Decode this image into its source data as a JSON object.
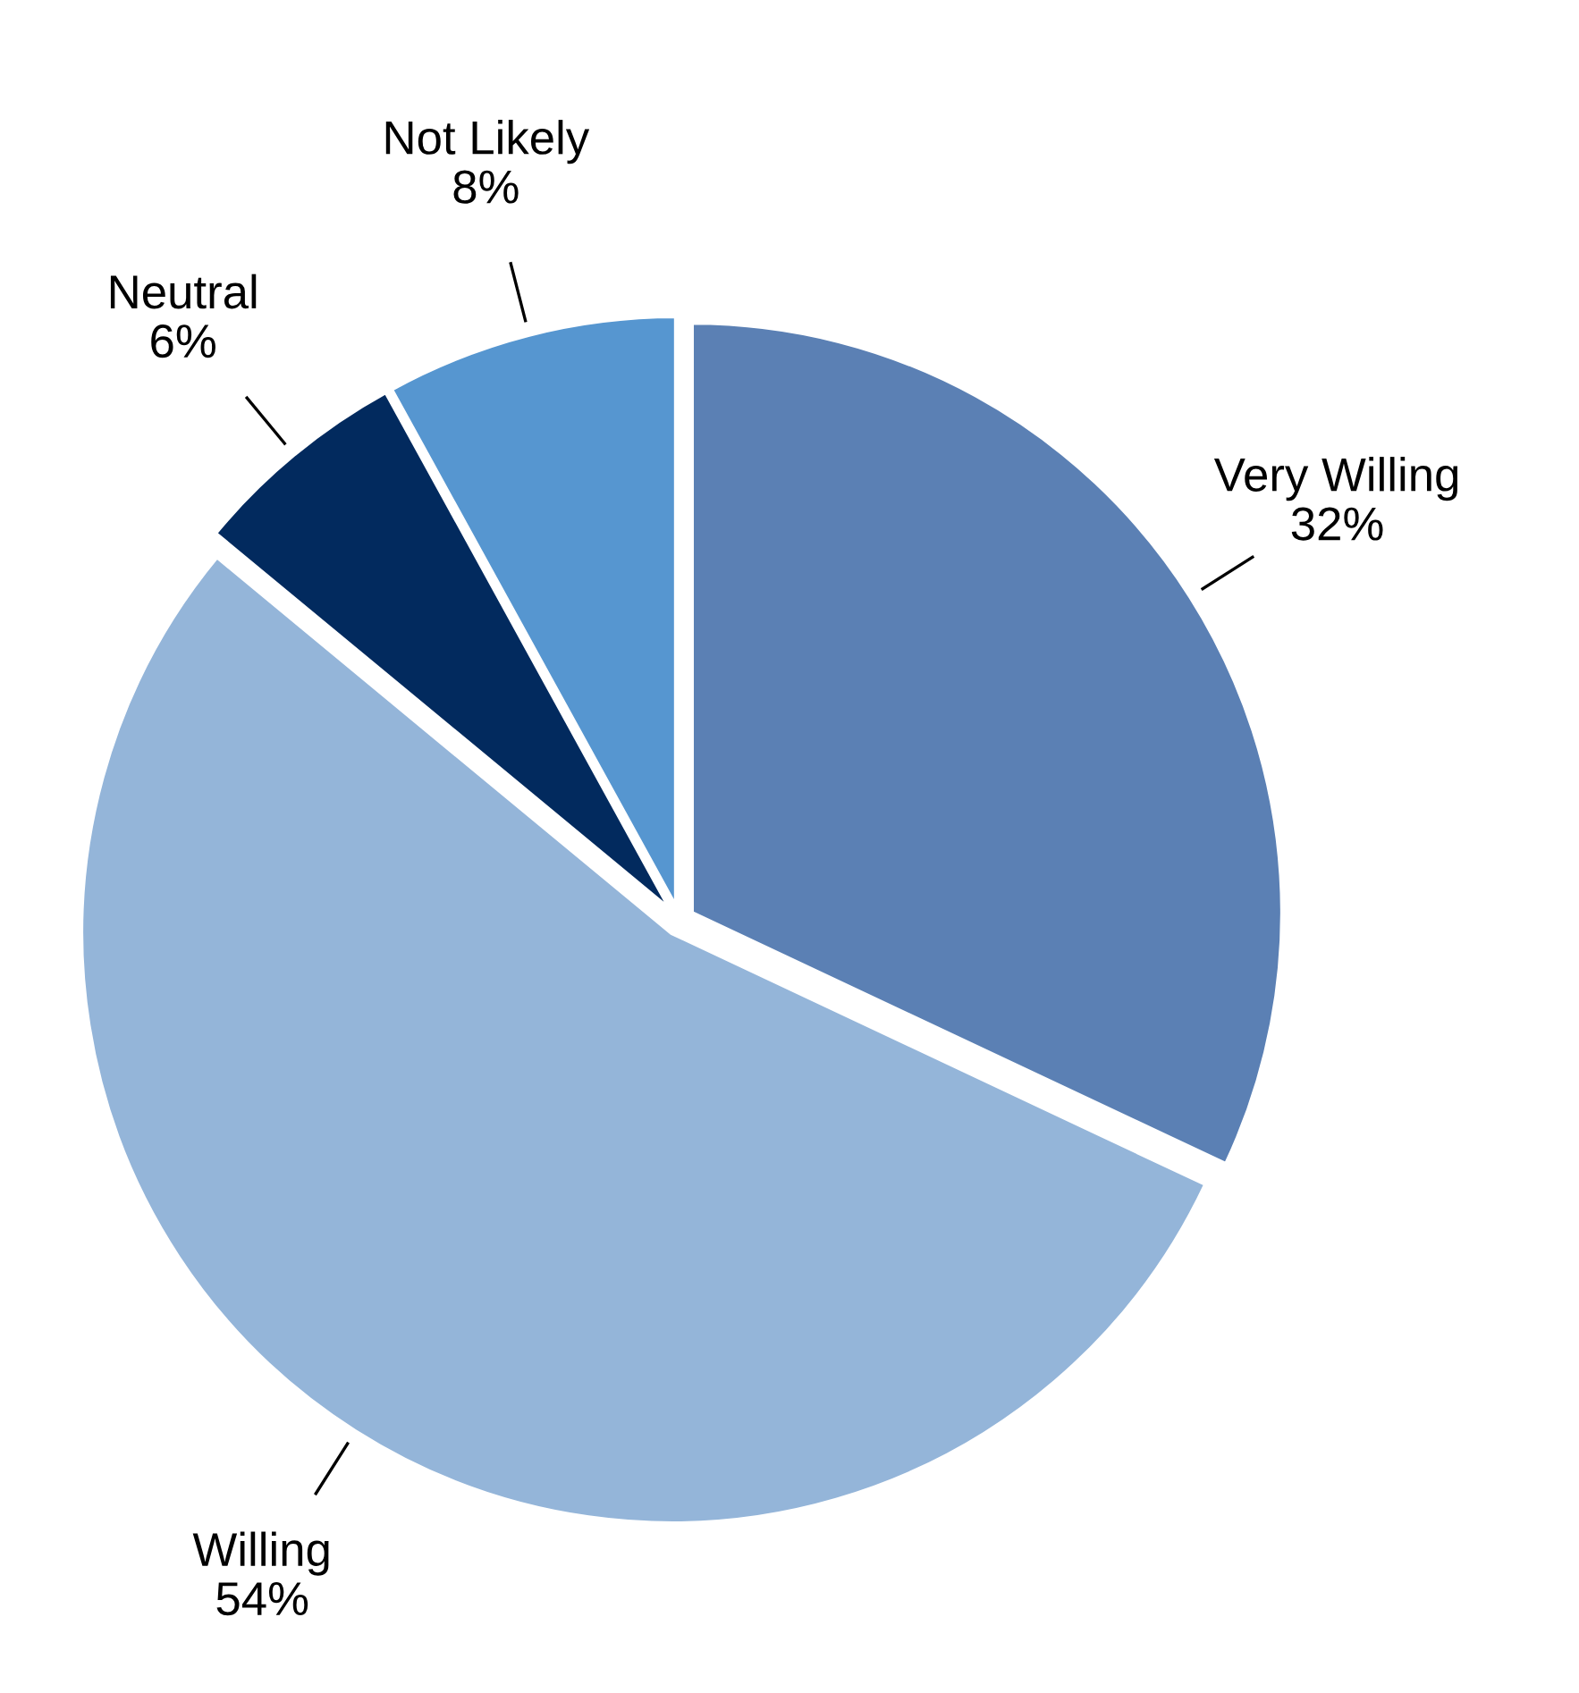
{
  "chart_data": {
    "type": "pie",
    "categories": [
      "Very Willing",
      "Willing",
      "Neutral",
      "Not Likely"
    ],
    "values": [
      32,
      54,
      6,
      8
    ],
    "colors": [
      "#5b80b4",
      "#94b5d9",
      "#022a5e",
      "#5696d0"
    ],
    "value_labels": [
      "32%",
      "54%",
      "6%",
      "8%"
    ]
  }
}
